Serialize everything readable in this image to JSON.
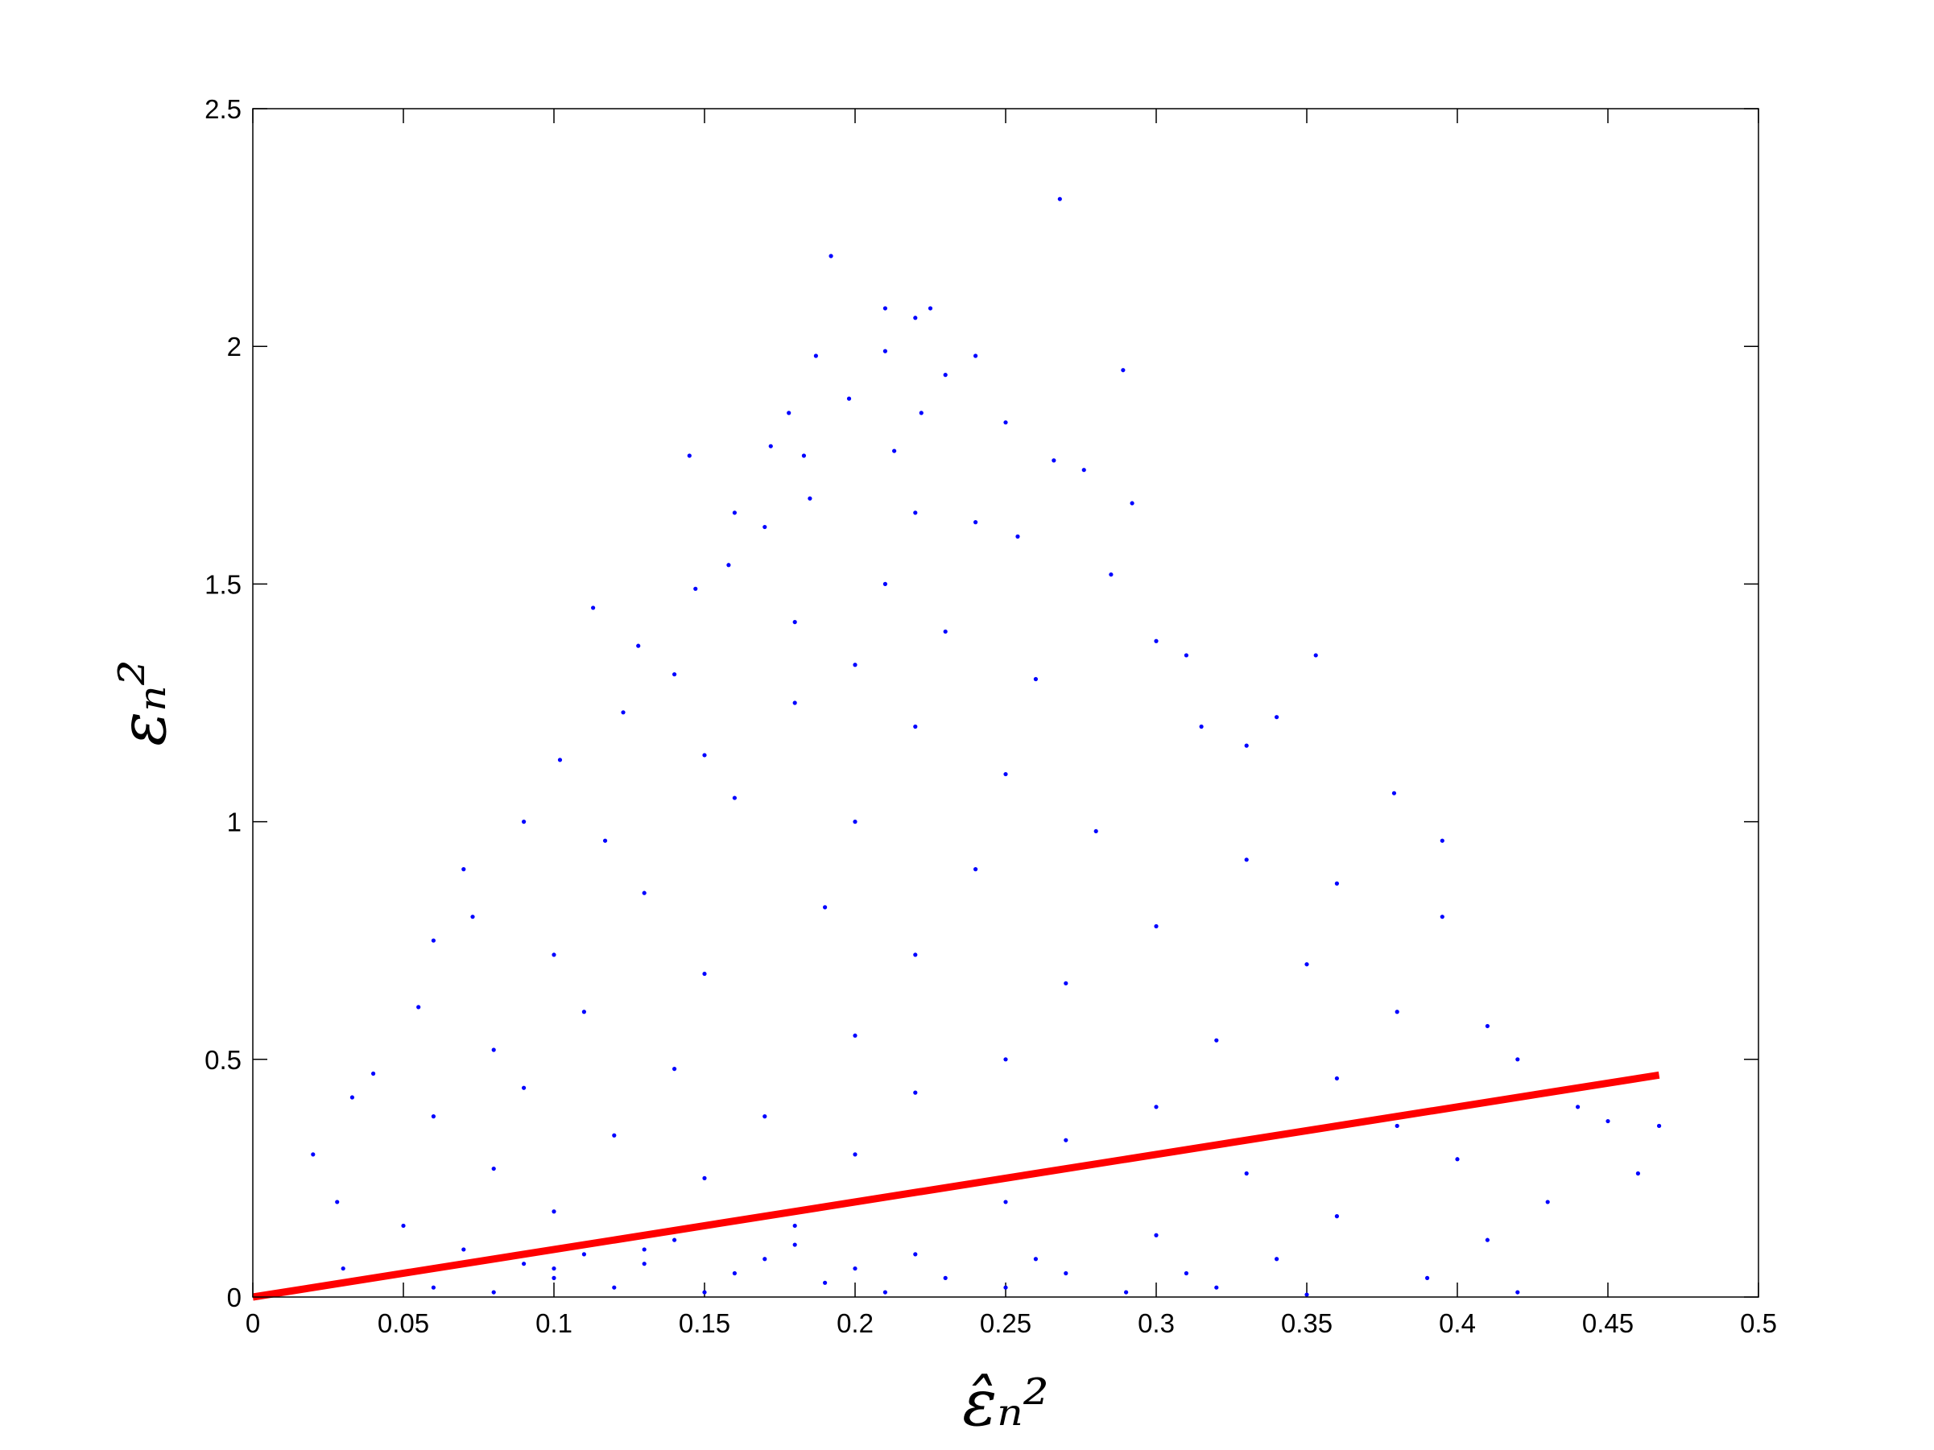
{
  "chart_data": {
    "type": "scatter",
    "x_label": "ε̂ₙ²",
    "y_label": "εₙ²",
    "xlim": [
      0,
      0.5
    ],
    "xticks": [
      0,
      0.05,
      0.1,
      0.15,
      0.2,
      0.25,
      0.3,
      0.35,
      0.4,
      0.45,
      0.5
    ],
    "ylim": [
      0,
      2.5
    ],
    "yticks": [
      0,
      0.5,
      1,
      1.5,
      2,
      2.5
    ],
    "grid": false,
    "series": [
      {
        "type": "scatter",
        "color": "#0000ff",
        "x": [
          0.268,
          0.192,
          0.21,
          0.225,
          0.22,
          0.187,
          0.21,
          0.24,
          0.289,
          0.23,
          0.198,
          0.178,
          0.222,
          0.25,
          0.172,
          0.213,
          0.145,
          0.183,
          0.266,
          0.276,
          0.185,
          0.292,
          0.16,
          0.22,
          0.17,
          0.24,
          0.254,
          0.158,
          0.147,
          0.21,
          0.285,
          0.113,
          0.18,
          0.23,
          0.3,
          0.128,
          0.353,
          0.31,
          0.2,
          0.14,
          0.26,
          0.123,
          0.18,
          0.34,
          0.315,
          0.22,
          0.33,
          0.102,
          0.15,
          0.25,
          0.379,
          0.16,
          0.09,
          0.2,
          0.28,
          0.117,
          0.395,
          0.33,
          0.07,
          0.24,
          0.36,
          0.13,
          0.19,
          0.073,
          0.395,
          0.3,
          0.06,
          0.1,
          0.22,
          0.35,
          0.15,
          0.27,
          0.055,
          0.38,
          0.11,
          0.41,
          0.2,
          0.32,
          0.08,
          0.25,
          0.42,
          0.04,
          0.14,
          0.36,
          0.033,
          0.09,
          0.22,
          0.44,
          0.3,
          0.06,
          0.17,
          0.38,
          0.45,
          0.12,
          0.27,
          0.467,
          0.02,
          0.2,
          0.4,
          0.08,
          0.33,
          0.46,
          0.15,
          0.028,
          0.25,
          0.43,
          0.1,
          0.36,
          0.05,
          0.18,
          0.3,
          0.41,
          0.07,
          0.13,
          0.22,
          0.34,
          0.03,
          0.1,
          0.16,
          0.27,
          0.39,
          0.02,
          0.06,
          0.12,
          0.19,
          0.25,
          0.32,
          0.42,
          0.08,
          0.15,
          0.21,
          0.29,
          0.35,
          0.1,
          0.13,
          0.17,
          0.2,
          0.23,
          0.14,
          0.11,
          0.09,
          0.18,
          0.26,
          0.31
        ],
        "y": [
          2.31,
          2.19,
          2.08,
          2.08,
          2.06,
          1.98,
          1.99,
          1.98,
          1.95,
          1.94,
          1.89,
          1.86,
          1.86,
          1.84,
          1.79,
          1.78,
          1.77,
          1.77,
          1.76,
          1.74,
          1.68,
          1.67,
          1.65,
          1.65,
          1.62,
          1.63,
          1.6,
          1.54,
          1.49,
          1.5,
          1.52,
          1.45,
          1.42,
          1.4,
          1.38,
          1.37,
          1.35,
          1.35,
          1.33,
          1.31,
          1.3,
          1.23,
          1.25,
          1.22,
          1.2,
          1.2,
          1.16,
          1.13,
          1.14,
          1.1,
          1.06,
          1.05,
          1.0,
          1.0,
          0.98,
          0.96,
          0.96,
          0.92,
          0.9,
          0.9,
          0.87,
          0.85,
          0.82,
          0.8,
          0.8,
          0.78,
          0.75,
          0.72,
          0.72,
          0.7,
          0.68,
          0.66,
          0.61,
          0.6,
          0.6,
          0.57,
          0.55,
          0.54,
          0.52,
          0.5,
          0.5,
          0.47,
          0.48,
          0.46,
          0.42,
          0.44,
          0.43,
          0.4,
          0.4,
          0.38,
          0.38,
          0.36,
          0.37,
          0.34,
          0.33,
          0.36,
          0.3,
          0.3,
          0.29,
          0.27,
          0.26,
          0.26,
          0.25,
          0.2,
          0.2,
          0.2,
          0.18,
          0.17,
          0.15,
          0.15,
          0.13,
          0.12,
          0.1,
          0.1,
          0.09,
          0.08,
          0.06,
          0.06,
          0.05,
          0.05,
          0.04,
          0.02,
          0.02,
          0.02,
          0.03,
          0.02,
          0.02,
          0.01,
          0.01,
          0.01,
          0.01,
          0.01,
          0.005,
          0.04,
          0.07,
          0.08,
          0.06,
          0.04,
          0.12,
          0.09,
          0.07,
          0.11,
          0.08,
          0.05
        ]
      },
      {
        "type": "line",
        "color": "#ff0000",
        "x": [
          0,
          0.467
        ],
        "y": [
          0,
          0.467
        ]
      }
    ]
  }
}
